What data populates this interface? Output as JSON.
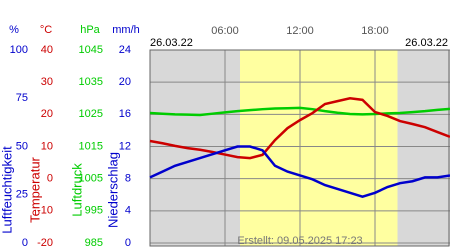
{
  "chart_data": {
    "type": "line",
    "date_left": "26.03.22",
    "date_right": "26.03.22",
    "footer": "Erstellt: 09.05.2025 17:23",
    "xlim": [
      0,
      24
    ],
    "xticks": [
      {
        "value": 6,
        "label": "06:00"
      },
      {
        "value": 12,
        "label": "12:00"
      },
      {
        "value": 18,
        "label": "18:00"
      }
    ],
    "daylight": [
      7.2,
      19.8
    ],
    "y_axes": [
      {
        "unit": "%",
        "label": "Luftfeuchtigkeit",
        "color": "#0000cc",
        "ylim": [
          0,
          100
        ],
        "yticks": [
          0,
          25,
          50,
          75,
          100
        ]
      },
      {
        "unit": "°C",
        "label": "Temperatur",
        "color": "#cc0000",
        "ylim": [
          -20,
          40
        ],
        "yticks": [
          -20,
          -10,
          0,
          10,
          20,
          30,
          40
        ]
      },
      {
        "unit": "hPa",
        "label": "Luftdruck",
        "color": "#00cc00",
        "ylim": [
          985,
          1045
        ],
        "yticks": [
          985,
          995,
          1005,
          1015,
          1025,
          1035,
          1045
        ]
      },
      {
        "unit": "mm/h",
        "label": "Niederschlag",
        "color": "#0000cc",
        "ylim": [
          0,
          24
        ],
        "yticks": [
          0,
          4,
          8,
          12,
          16,
          20,
          24
        ]
      }
    ],
    "x": [
      0,
      1,
      2,
      3,
      4,
      5,
      6,
      7,
      8,
      9,
      10,
      11,
      12,
      13,
      14,
      15,
      16,
      17,
      18,
      19,
      20,
      21,
      22,
      23,
      24
    ],
    "series": [
      {
        "axis": 2,
        "color": "#00cc00",
        "values": [
          1025.4,
          1025.2,
          1025.0,
          1024.9,
          1024.8,
          1025.2,
          1025.6,
          1026.0,
          1026.3,
          1026.6,
          1026.8,
          1026.9,
          1027.0,
          1026.6,
          1026.0,
          1025.5,
          1025.1,
          1025.0,
          1025.1,
          1025.3,
          1025.4,
          1025.7,
          1026.0,
          1026.4,
          1026.7
        ]
      },
      {
        "axis": 1,
        "color": "#cc0000",
        "values": [
          11.7,
          11.0,
          10.2,
          9.5,
          9.0,
          8.3,
          7.5,
          6.7,
          6.4,
          7.4,
          12.0,
          15.7,
          18.2,
          20.4,
          23.2,
          24.1,
          25.0,
          24.5,
          20.7,
          19.5,
          17.9,
          17.0,
          16.0,
          14.5,
          13.0
        ]
      },
      {
        "axis": 0,
        "color": "#0000cc",
        "values": [
          34,
          37,
          40,
          42,
          44,
          46,
          48,
          50,
          50,
          48,
          40,
          37,
          35,
          33,
          30,
          28,
          26,
          24,
          26,
          29,
          31,
          32,
          34,
          34,
          35
        ]
      }
    ]
  }
}
